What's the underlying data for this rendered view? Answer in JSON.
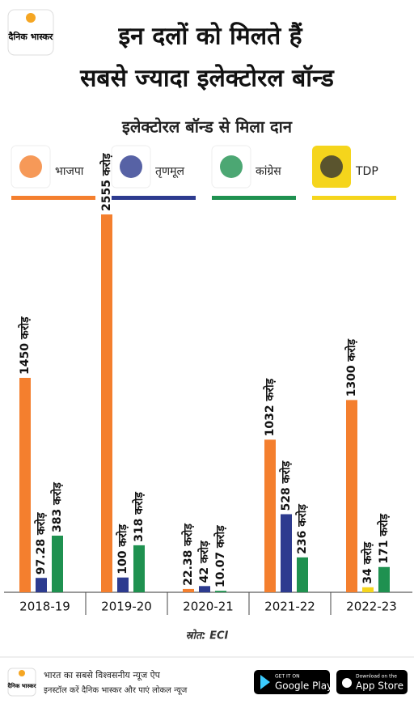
{
  "brand": {
    "logo": "दैनिक भास्कर"
  },
  "chart_data": {
    "type": "bar",
    "title": [
      "इन दलों को मिलते हैं",
      "सबसे ज्यादा इलेक्टोरल बॉन्ड"
    ],
    "subtitle": "इलेक्टोरल बॉन्ड से मिला दान",
    "categories": [
      "2018-19",
      "2019-20",
      "2020-21",
      "2021-22",
      "2022-23"
    ],
    "series": [
      {
        "name": "भाजपा",
        "color": "#f47f2e",
        "values": [
          1450,
          2555,
          22.38,
          1032,
          1300
        ],
        "value_labels": [
          "1450 करोड़",
          "2555 करोड़",
          "22.38 करोड़",
          "1032 करोड़",
          "1300 करोड़"
        ]
      },
      {
        "name": "तृणमूल",
        "color": "#2d3b8f",
        "values": [
          97.28,
          100,
          42,
          528,
          null
        ],
        "value_labels": [
          "97.28 करोड़",
          "100 करोड़",
          "42 करोड़",
          "528 करोड़",
          null
        ]
      },
      {
        "name": "कांग्रेस",
        "color": "#1f9150",
        "values": [
          383,
          318,
          10.07,
          236,
          171
        ],
        "value_labels": [
          "383 करोड़",
          "318 करोड़",
          "10.07 करोड़",
          "236 करोड़",
          "171 करोड़"
        ]
      },
      {
        "name": "TDP",
        "color": "#f5d51c",
        "values": [
          null,
          null,
          null,
          null,
          34
        ],
        "value_labels": [
          null,
          null,
          null,
          null,
          "34 करोड़"
        ]
      }
    ],
    "source": "स्रोत: ECI"
  },
  "footer": {
    "line1": "भारत का सबसे विश्वसनीय न्यूज ऐप",
    "line2": "इनस्टॉल करें दैनिक भास्कर और पाएं लोकल न्यूज",
    "google_small": "GET IT ON",
    "google": "Google Play",
    "apple_small": "Download on the",
    "apple": "App Store"
  }
}
